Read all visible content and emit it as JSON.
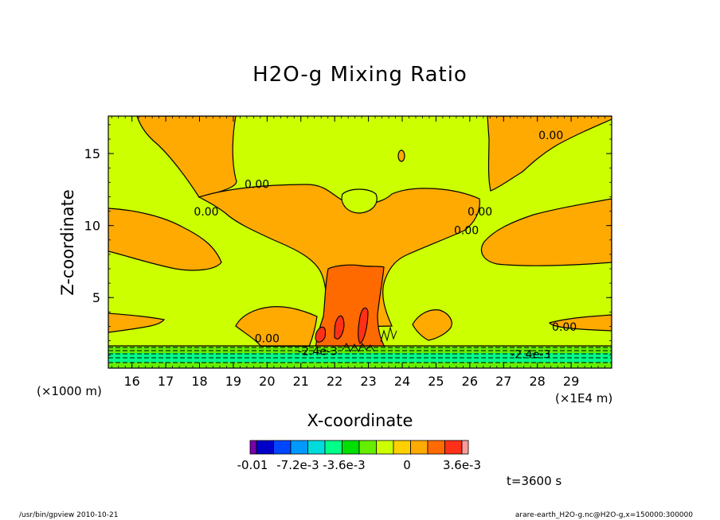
{
  "chart_data": {
    "type": "heatmap",
    "title": "H2O-g Mixing Ratio",
    "xlabel": "X-coordinate",
    "ylabel": "Z-coordinate",
    "x_unit": "(×1E4 m)",
    "y_unit": "(×1000 m)",
    "xlim": [
      15.3,
      30.2
    ],
    "ylim": [
      0.1,
      17.6
    ],
    "x_ticks": [
      16,
      17,
      18,
      19,
      20,
      21,
      22,
      23,
      24,
      25,
      26,
      27,
      28,
      29
    ],
    "y_ticks": [
      5,
      10,
      15
    ],
    "grid": false,
    "colorbar": {
      "orientation": "horizontal",
      "placement": "bottom",
      "colors": [
        "#7a00a8",
        "#0000c8",
        "#0046ff",
        "#0099ff",
        "#00dcdc",
        "#00ff88",
        "#00e000",
        "#66ee00",
        "#ccff00",
        "#ffd000",
        "#ffaa00",
        "#ff6a00",
        "#ff3018",
        "#ff9a9a"
      ],
      "tick_labels": [
        "-0.01",
        "-7.2e-3",
        "-3.6e-3",
        "0",
        "3.6e-3"
      ]
    },
    "contour_labels": [
      {
        "text": "0.00",
        "x": 19.7,
        "y": 12.6
      },
      {
        "text": "0.00",
        "x": 18.2,
        "y": 10.7
      },
      {
        "text": "0.00",
        "x": 28.4,
        "y": 16.0
      },
      {
        "text": "0.00",
        "x": 26.3,
        "y": 10.7
      },
      {
        "text": "0.00",
        "x": 25.9,
        "y": 9.4
      },
      {
        "text": "0.00",
        "x": 28.8,
        "y": 2.7
      },
      {
        "text": "0.00",
        "x": 20.0,
        "y": 1.9
      },
      {
        "text": "-2.4e-3",
        "x": 21.5,
        "y": 1.0
      },
      {
        "text": "-2.4e-3",
        "x": 27.8,
        "y": 0.8
      }
    ],
    "annotation": "t=3600 s"
  },
  "footer": {
    "left": "/usr/bin/gpview  2010-10-21",
    "right": "arare-earth_H2O-g.nc@H2O-g,x=150000:300000"
  },
  "colors": {
    "background_field": "#ccff00",
    "positive_field": "#ffaa00",
    "core_field": "#ff6a00",
    "near_ground": "#66ee00",
    "ground_negative": "#00ff88"
  }
}
